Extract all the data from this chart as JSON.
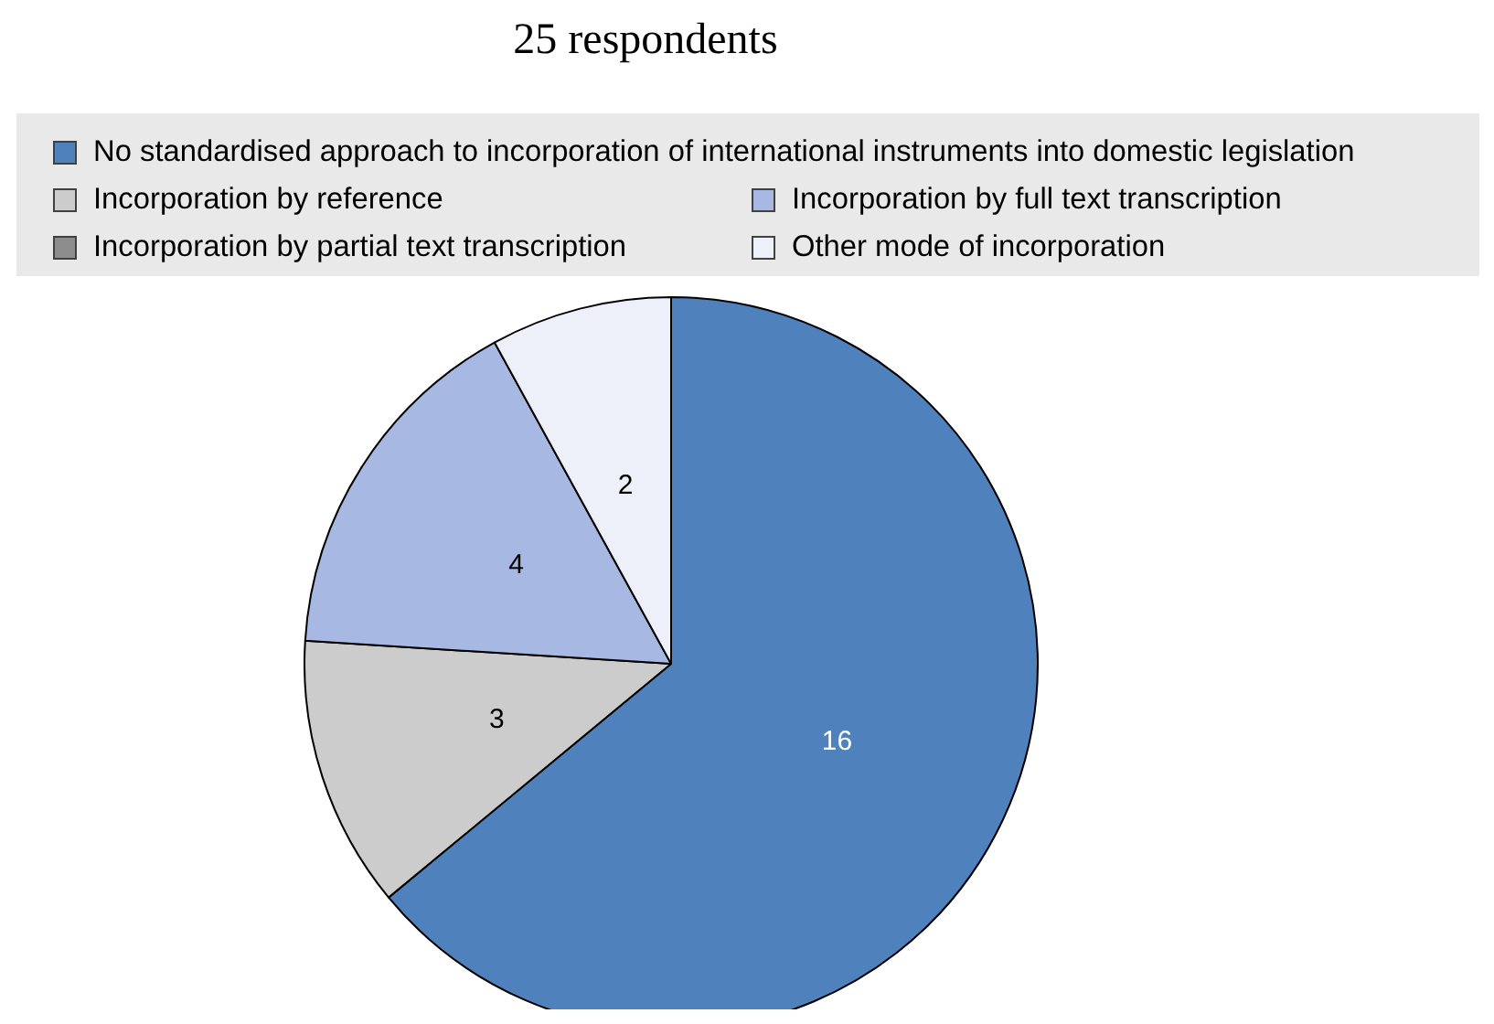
{
  "chart_data": {
    "type": "pie",
    "title": "25 respondents",
    "categories": [
      "No standardised approach to incorporation of international instruments into domestic legislation",
      "Incorporation by reference",
      "Incorporation by full text transcription",
      "Incorporation by partial text transcription",
      "Other mode of incorporation"
    ],
    "values": [
      16,
      3,
      4,
      0,
      2
    ],
    "colors": [
      "#4f81bd",
      "#cccccc",
      "#a7b9e3",
      "#8c8c8c",
      "#edf0f8"
    ],
    "value_labels": [
      "16",
      "3",
      "4",
      null,
      "2"
    ],
    "legend": "top"
  }
}
